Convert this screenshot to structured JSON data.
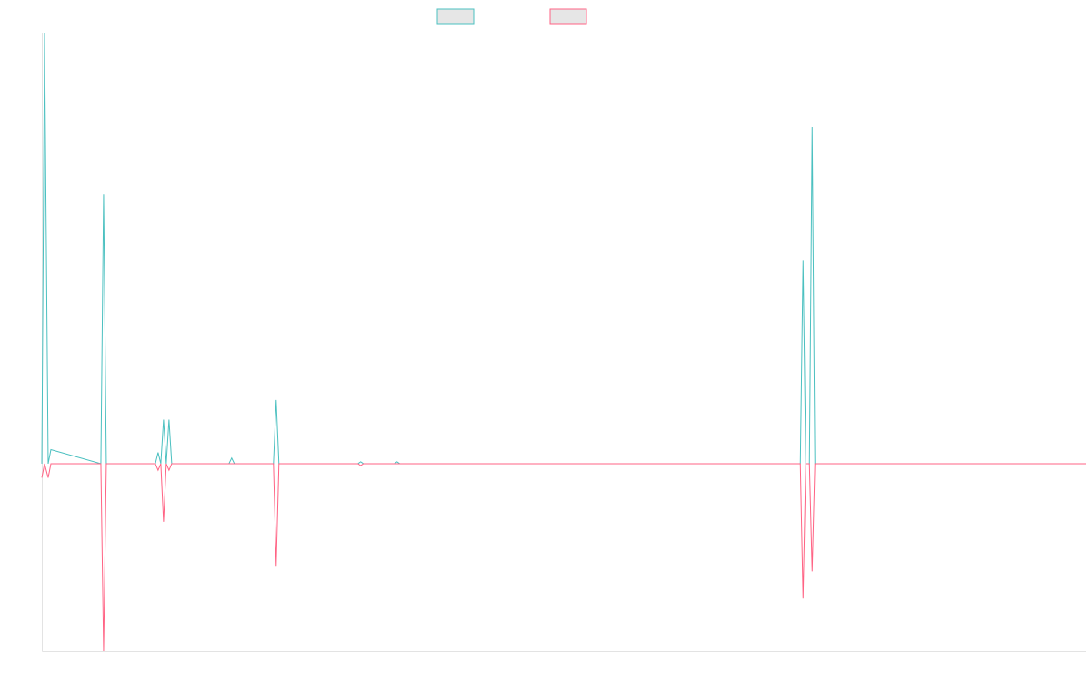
{
  "chart_data": {
    "type": "line",
    "title": "",
    "xlabel": "",
    "ylabel": "",
    "grid": false,
    "legend_position": "top-center",
    "xlim": [
      0,
      115
    ],
    "ylim": [
      -200,
      460
    ],
    "x": [
      0,
      0.3,
      0.7,
      1.0,
      6.5,
      6.8,
      7.1,
      12.5,
      12.8,
      13.1,
      13.4,
      13.7,
      14.0,
      14.3,
      14.6,
      20.6,
      20.9,
      21.2,
      25.5,
      25.8,
      26.1,
      34.8,
      35.1,
      35.4,
      38.8,
      39.1,
      39.4,
      83.5,
      83.8,
      84.1,
      84.5,
      84.8,
      85.1,
      115
    ],
    "series": [
      {
        "color": "#4bc0c0",
        "values": [
          0,
          460,
          0,
          15,
          0,
          288,
          0,
          0,
          12,
          0,
          47,
          0,
          47,
          0,
          0,
          0,
          6,
          0,
          0,
          68,
          0,
          0,
          2,
          0,
          0,
          2,
          0,
          0,
          217,
          0,
          0,
          359,
          0,
          0
        ]
      },
      {
        "color": "#ff6384",
        "values": [
          -15,
          0,
          -15,
          0,
          0,
          -200,
          0,
          0,
          -7,
          0,
          -62,
          0,
          -7,
          0,
          0,
          0,
          0,
          0,
          0,
          -109,
          0,
          0,
          -2,
          0,
          0,
          0,
          0,
          0,
          -144,
          0,
          0,
          -115,
          0,
          0
        ]
      }
    ]
  }
}
